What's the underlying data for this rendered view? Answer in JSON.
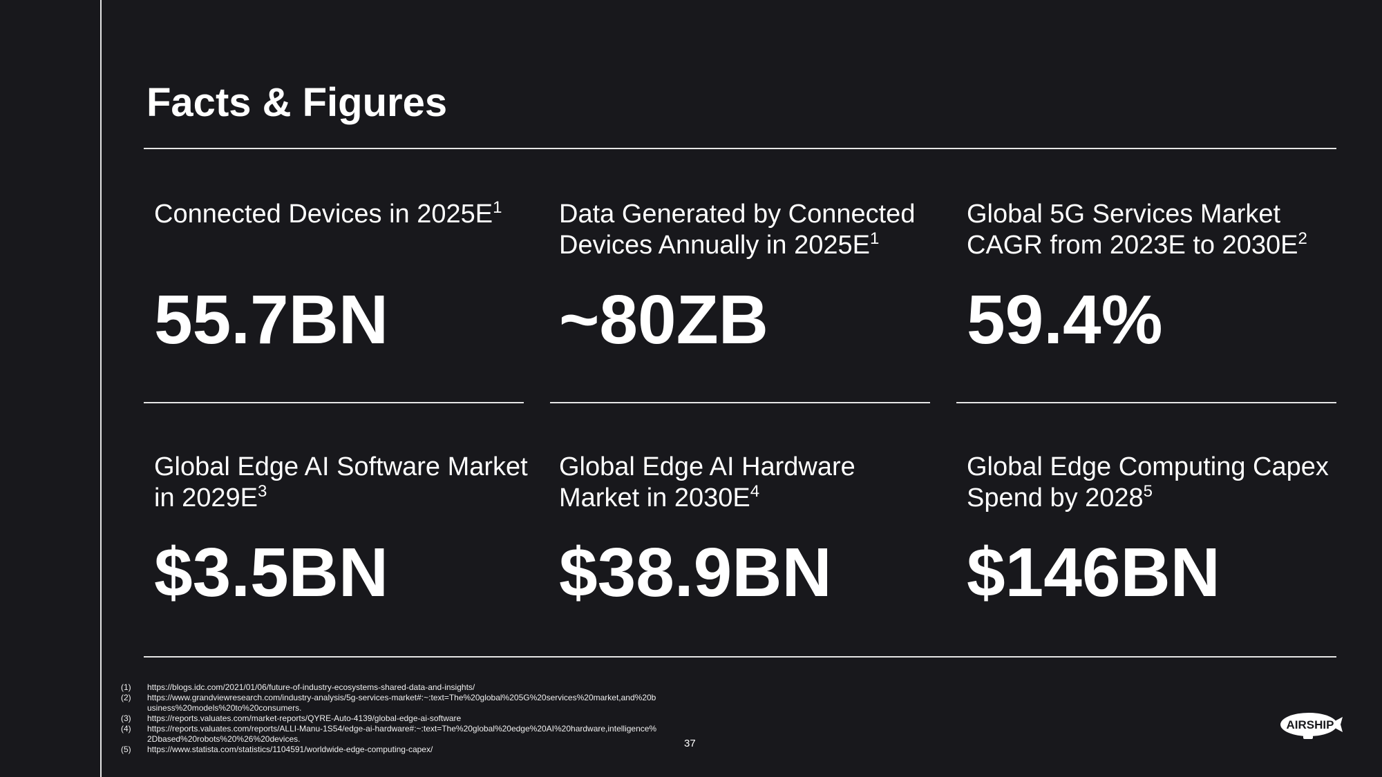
{
  "title": "Facts & Figures",
  "stats": [
    {
      "label": "Connected Devices in 2025E",
      "sup": "1",
      "value": "55.7BN"
    },
    {
      "label": "Data Generated by Connected Devices Annually in 2025E",
      "sup": "1",
      "value": "~80ZB"
    },
    {
      "label": "Global 5G Services Market CAGR from 2023E to 2030E",
      "sup": "2",
      "value": "59.4%"
    },
    {
      "label": "Global Edge AI Software Market in 2029E",
      "sup": "3",
      "value": "$3.5BN"
    },
    {
      "label": "Global Edge AI Hardware Market in 2030E",
      "sup": "4",
      "value": "$38.9BN"
    },
    {
      "label": "Global Edge Computing Capex Spend by 2028",
      "sup": "5",
      "value": "$146BN"
    }
  ],
  "footnotes": [
    {
      "num": "(1)",
      "text": "https://blogs.idc.com/2021/01/06/future-of-industry-ecosystems-shared-data-and-insights/"
    },
    {
      "num": "(2)",
      "text": "https://www.grandviewresearch.com/industry-analysis/5g-services-market#:~:text=The%20global%205G%20services%20market,and%20business%20models%20to%20consumers."
    },
    {
      "num": "(3)",
      "text": "https://reports.valuates.com/market-reports/QYRE-Auto-4139/global-edge-ai-software"
    },
    {
      "num": "(4)",
      "text": "https://reports.valuates.com/reports/ALLI-Manu-1S54/edge-ai-hardware#:~:text=The%20global%20edge%20AI%20hardware,intelligence%2Dbased%20robots%20%26%20devices."
    },
    {
      "num": "(5)",
      "text": "https://www.statista.com/statistics/1104591/worldwide-edge-computing-capex/"
    }
  ],
  "page_number": "37",
  "logo_text": "AIRSHIP"
}
